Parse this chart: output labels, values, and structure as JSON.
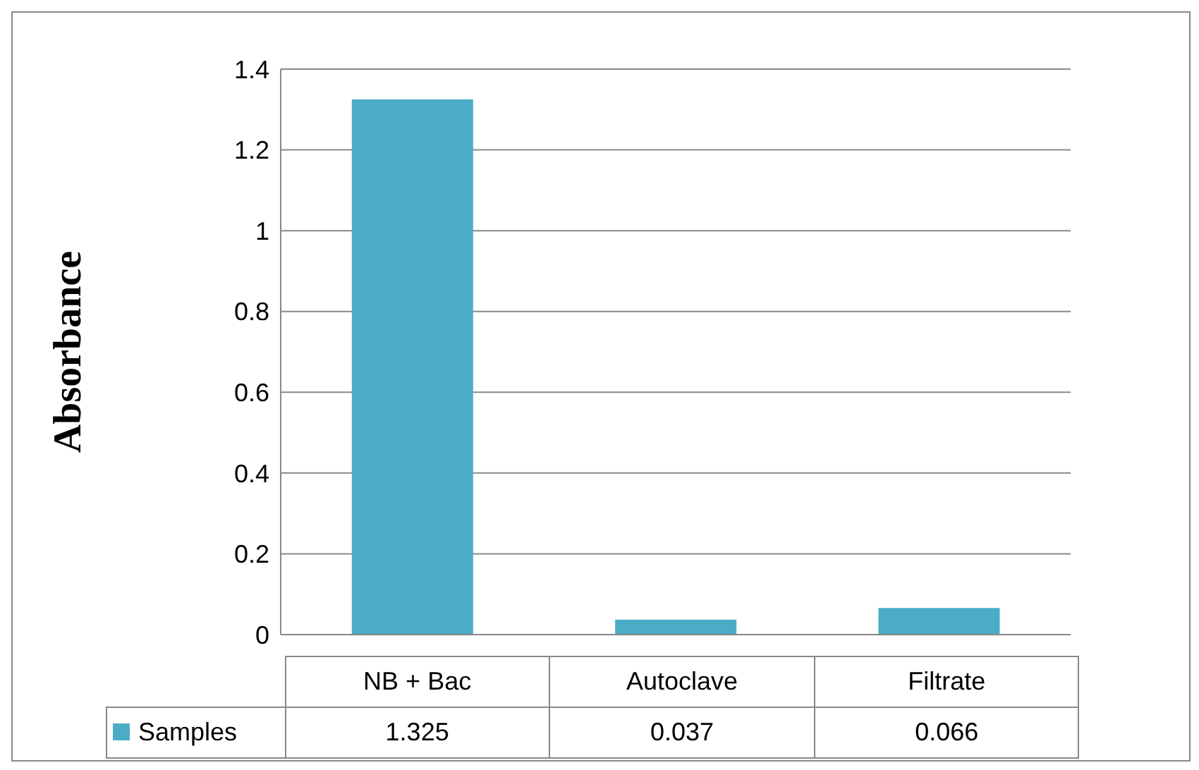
{
  "chart_data": {
    "type": "bar",
    "ylabel": "Absorbance",
    "categories": [
      "NB + Bac",
      "Autoclave",
      "Filtrate"
    ],
    "series": [
      {
        "name": "Samples",
        "color": "#4bacc6",
        "values": [
          1.325,
          0.037,
          0.066
        ]
      }
    ],
    "ylim": [
      0,
      1.4
    ],
    "yticks": [
      0,
      0.2,
      0.4,
      0.6,
      0.8,
      1,
      1.2,
      1.4
    ],
    "grid": "y",
    "legend": "bottom",
    "data_labels": true
  }
}
